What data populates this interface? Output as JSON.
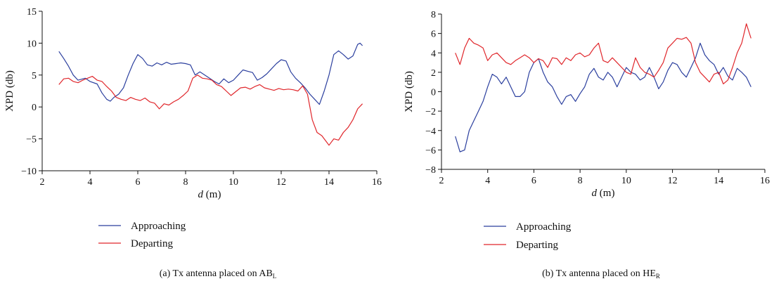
{
  "chart_data": [
    {
      "type": "line",
      "panel_caption": {
        "prefix": "(a) Tx antenna placed on AB",
        "sub": "L"
      },
      "xlabel": {
        "italic": "d",
        "rest": " (m)"
      },
      "ylabel": "XPD (db)",
      "xlim": [
        2,
        16
      ],
      "ylim": [
        -10,
        15
      ],
      "xticks": [
        2,
        4,
        6,
        8,
        10,
        12,
        14,
        16
      ],
      "yticks": [
        -10,
        -5,
        0,
        5,
        10,
        15
      ],
      "ytick_labels": [
        "−10",
        "−5",
        "0",
        "5",
        "10",
        "15"
      ],
      "grid": false,
      "legend_position": "below",
      "series": [
        {
          "name": "Approaching",
          "color": "#2b3f9e",
          "x": [
            2.7,
            2.9,
            3.1,
            3.3,
            3.5,
            3.8,
            4.0,
            4.3,
            4.5,
            4.7,
            4.85,
            5.0,
            5.2,
            5.4,
            5.6,
            5.8,
            6.0,
            6.2,
            6.4,
            6.6,
            6.8,
            7.0,
            7.2,
            7.4,
            7.6,
            7.8,
            8.0,
            8.2,
            8.4,
            8.6,
            8.8,
            9.0,
            9.2,
            9.4,
            9.6,
            9.8,
            10.0,
            10.2,
            10.4,
            10.6,
            10.8,
            11.0,
            11.2,
            11.4,
            11.6,
            11.8,
            12.0,
            12.2,
            12.4,
            12.6,
            12.8,
            13.0,
            13.2,
            13.4,
            13.6,
            13.8,
            14.0,
            14.2,
            14.4,
            14.6,
            14.8,
            15.0,
            15.2,
            15.3,
            15.4
          ],
          "y": [
            8.7,
            7.6,
            6.4,
            5.0,
            4.2,
            4.5,
            4.0,
            3.6,
            2.2,
            1.2,
            0.9,
            1.5,
            2.0,
            3.0,
            5.0,
            6.8,
            8.2,
            7.6,
            6.6,
            6.4,
            6.9,
            6.6,
            7.0,
            6.7,
            6.8,
            6.9,
            6.8,
            6.6,
            5.0,
            5.5,
            5.0,
            4.5,
            4.0,
            3.6,
            4.4,
            3.8,
            4.2,
            5.0,
            5.8,
            5.6,
            5.4,
            4.2,
            4.6,
            5.2,
            6.0,
            6.8,
            7.4,
            7.2,
            5.5,
            4.5,
            3.8,
            3.0,
            2.0,
            1.2,
            0.4,
            2.5,
            5.0,
            8.2,
            8.8,
            8.2,
            7.5,
            8.0,
            9.8,
            10.0,
            9.6
          ]
        },
        {
          "name": "Departing",
          "color": "#e0262b",
          "x": [
            2.7,
            2.9,
            3.1,
            3.3,
            3.5,
            3.7,
            3.9,
            4.1,
            4.3,
            4.5,
            4.7,
            4.9,
            5.1,
            5.3,
            5.5,
            5.7,
            5.9,
            6.1,
            6.3,
            6.5,
            6.7,
            6.9,
            7.1,
            7.3,
            7.5,
            7.7,
            7.9,
            8.1,
            8.3,
            8.5,
            8.7,
            8.9,
            9.1,
            9.3,
            9.5,
            9.7,
            9.9,
            10.1,
            10.3,
            10.5,
            10.7,
            10.9,
            11.1,
            11.3,
            11.5,
            11.7,
            11.9,
            12.1,
            12.3,
            12.5,
            12.7,
            12.9,
            13.1,
            13.3,
            13.5,
            13.7,
            13.9,
            14.0,
            14.2,
            14.4,
            14.6,
            14.8,
            15.0,
            15.2,
            15.4
          ],
          "y": [
            3.5,
            4.4,
            4.5,
            4.0,
            3.8,
            4.2,
            4.5,
            4.8,
            4.2,
            4.0,
            3.2,
            2.5,
            1.5,
            1.2,
            1.0,
            1.5,
            1.2,
            1.0,
            1.4,
            0.8,
            0.6,
            -0.3,
            0.5,
            0.3,
            0.8,
            1.2,
            1.8,
            2.5,
            4.5,
            5.0,
            4.5,
            4.4,
            4.2,
            3.5,
            3.2,
            2.5,
            1.8,
            2.4,
            3.0,
            3.1,
            2.8,
            3.2,
            3.5,
            3.0,
            2.8,
            2.6,
            2.9,
            2.7,
            2.8,
            2.7,
            2.5,
            3.3,
            2.0,
            -2.0,
            -4.0,
            -4.5,
            -5.5,
            -6.0,
            -5.0,
            -5.2,
            -4.0,
            -3.2,
            -2.0,
            -0.3,
            0.5
          ]
        }
      ]
    },
    {
      "type": "line",
      "panel_caption": {
        "prefix": "(b) Tx antenna placed on HE",
        "sub": "R"
      },
      "xlabel": {
        "italic": "d",
        "rest": " (m)"
      },
      "ylabel": "XPD (db)",
      "xlim": [
        2,
        16
      ],
      "ylim": [
        -8,
        8
      ],
      "xticks": [
        2,
        4,
        6,
        8,
        10,
        12,
        14,
        16
      ],
      "yticks": [
        -8,
        -6,
        -4,
        -2,
        0,
        2,
        4,
        6,
        8
      ],
      "ytick_labels": [
        "−8",
        "−6",
        "−4",
        "−2",
        "0",
        "2",
        "4",
        "6",
        "8"
      ],
      "grid": false,
      "legend_position": "below",
      "series": [
        {
          "name": "Approaching",
          "color": "#2b3f9e",
          "x": [
            2.6,
            2.8,
            3.0,
            3.2,
            3.4,
            3.6,
            3.8,
            4.0,
            4.2,
            4.4,
            4.6,
            4.8,
            5.0,
            5.2,
            5.4,
            5.6,
            5.8,
            6.0,
            6.2,
            6.4,
            6.6,
            6.8,
            7.0,
            7.2,
            7.4,
            7.6,
            7.8,
            8.0,
            8.2,
            8.4,
            8.6,
            8.8,
            9.0,
            9.2,
            9.4,
            9.6,
            9.8,
            10.0,
            10.2,
            10.4,
            10.6,
            10.8,
            11.0,
            11.2,
            11.4,
            11.6,
            11.8,
            12.0,
            12.2,
            12.4,
            12.6,
            12.8,
            13.0,
            13.2,
            13.4,
            13.6,
            13.8,
            14.0,
            14.2,
            14.4,
            14.6,
            14.8,
            15.0,
            15.2,
            15.4
          ],
          "y": [
            -4.6,
            -6.2,
            -6.0,
            -4.0,
            -3.0,
            -2.0,
            -1.0,
            0.5,
            1.8,
            1.5,
            0.8,
            1.5,
            0.5,
            -0.5,
            -0.5,
            0.0,
            2.0,
            3.0,
            3.4,
            2.0,
            1.0,
            0.5,
            -0.5,
            -1.3,
            -0.5,
            -0.3,
            -1.0,
            -0.2,
            0.5,
            1.8,
            2.4,
            1.5,
            1.2,
            2.0,
            1.5,
            0.5,
            1.5,
            2.5,
            2.0,
            1.8,
            1.2,
            1.5,
            2.5,
            1.5,
            0.3,
            1.0,
            2.2,
            3.0,
            2.8,
            2.0,
            1.5,
            2.5,
            3.5,
            5.0,
            3.8,
            3.2,
            2.8,
            1.8,
            2.5,
            1.6,
            1.2,
            2.4,
            2.0,
            1.5,
            0.5
          ]
        },
        {
          "name": "Departing",
          "color": "#e0262b",
          "x": [
            2.6,
            2.8,
            3.0,
            3.2,
            3.4,
            3.6,
            3.8,
            4.0,
            4.2,
            4.4,
            4.6,
            4.8,
            5.0,
            5.2,
            5.4,
            5.6,
            5.8,
            6.0,
            6.2,
            6.4,
            6.6,
            6.8,
            7.0,
            7.2,
            7.4,
            7.6,
            7.8,
            8.0,
            8.2,
            8.4,
            8.6,
            8.8,
            9.0,
            9.2,
            9.4,
            9.6,
            9.8,
            10.0,
            10.2,
            10.4,
            10.6,
            10.8,
            11.0,
            11.2,
            11.4,
            11.6,
            11.8,
            12.0,
            12.2,
            12.4,
            12.6,
            12.8,
            13.0,
            13.2,
            13.4,
            13.6,
            13.8,
            14.0,
            14.2,
            14.4,
            14.6,
            14.8,
            15.0,
            15.2,
            15.4
          ],
          "y": [
            4.0,
            2.8,
            4.5,
            5.5,
            5.0,
            4.8,
            4.5,
            3.2,
            3.8,
            4.0,
            3.5,
            3.0,
            2.8,
            3.2,
            3.5,
            3.8,
            3.5,
            3.0,
            3.4,
            3.2,
            2.5,
            3.5,
            3.4,
            2.8,
            3.5,
            3.2,
            3.8,
            4.0,
            3.6,
            3.8,
            4.5,
            5.0,
            3.2,
            3.0,
            3.5,
            3.0,
            2.5,
            2.0,
            1.8,
            3.5,
            2.5,
            2.0,
            1.8,
            1.5,
            2.2,
            3.0,
            4.5,
            5.0,
            5.5,
            5.4,
            5.6,
            5.0,
            3.0,
            2.0,
            1.5,
            1.0,
            1.8,
            2.0,
            0.8,
            1.2,
            2.5,
            4.0,
            5.0,
            7.0,
            5.5
          ]
        }
      ]
    }
  ]
}
